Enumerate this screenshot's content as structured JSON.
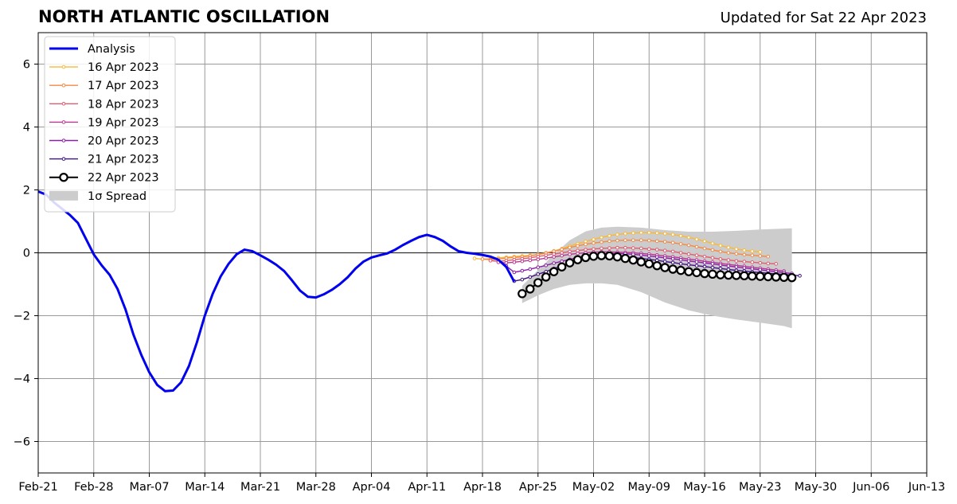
{
  "header": {
    "title": "NORTH ATLANTIC OSCILLATION",
    "updated": "Updated for Sat 22 Apr 2023"
  },
  "chart_data": {
    "type": "line",
    "title": "NORTH ATLANTIC OSCILLATION",
    "subtitle": "Updated for Sat 22 Apr 2023",
    "xlabel": "",
    "ylabel": "",
    "x_start": "2023-02-21",
    "xlim": [
      "2023-02-21",
      "2023-06-13"
    ],
    "ylim": [
      -7,
      7
    ],
    "grid": true,
    "legend_position": "top-left",
    "x_ticks": [
      "Feb-21",
      "Feb-28",
      "Mar-07",
      "Mar-14",
      "Mar-21",
      "Mar-28",
      "Apr-04",
      "Apr-11",
      "Apr-18",
      "Apr-25",
      "May-02",
      "May-09",
      "May-16",
      "May-23",
      "May-30",
      "Jun-06",
      "Jun-13"
    ],
    "y_ticks": [
      6,
      4,
      2,
      0,
      -2,
      -4,
      -6
    ],
    "y_tick_labels": [
      "6",
      "4",
      "2",
      "0",
      "−2",
      "−4",
      "−6"
    ],
    "legend": [
      "Analysis",
      "16 Apr 2023",
      "17 Apr 2023",
      "18 Apr 2023",
      "19 Apr 2023",
      "20 Apr 2023",
      "21 Apr 2023",
      "22 Apr 2023",
      "1σ Spread"
    ],
    "analysis": {
      "name": "Analysis",
      "color": "#0000ee",
      "points": [
        [
          "2023-02-21",
          1.95
        ],
        [
          "2023-02-22",
          1.85
        ],
        [
          "2023-02-23",
          1.6
        ],
        [
          "2023-02-24",
          1.4
        ],
        [
          "2023-02-25",
          1.2
        ],
        [
          "2023-02-26",
          0.95
        ],
        [
          "2023-02-27",
          0.45
        ],
        [
          "2023-02-28",
          -0.05
        ],
        [
          "2023-03-01",
          -0.4
        ],
        [
          "2023-03-02",
          -0.7
        ],
        [
          "2023-03-03",
          -1.15
        ],
        [
          "2023-03-04",
          -1.8
        ],
        [
          "2023-03-05",
          -2.6
        ],
        [
          "2023-03-06",
          -3.25
        ],
        [
          "2023-03-07",
          -3.8
        ],
        [
          "2023-03-08",
          -4.2
        ],
        [
          "2023-03-09",
          -4.4
        ],
        [
          "2023-03-10",
          -4.38
        ],
        [
          "2023-03-11",
          -4.12
        ],
        [
          "2023-03-12",
          -3.6
        ],
        [
          "2023-03-13",
          -2.85
        ],
        [
          "2023-03-14",
          -2.0
        ],
        [
          "2023-03-15",
          -1.3
        ],
        [
          "2023-03-16",
          -0.75
        ],
        [
          "2023-03-17",
          -0.35
        ],
        [
          "2023-03-18",
          -0.05
        ],
        [
          "2023-03-19",
          0.1
        ],
        [
          "2023-03-20",
          0.05
        ],
        [
          "2023-03-21",
          -0.08
        ],
        [
          "2023-03-22",
          -0.22
        ],
        [
          "2023-03-23",
          -0.38
        ],
        [
          "2023-03-24",
          -0.58
        ],
        [
          "2023-03-25",
          -0.88
        ],
        [
          "2023-03-26",
          -1.2
        ],
        [
          "2023-03-27",
          -1.4
        ],
        [
          "2023-03-28",
          -1.42
        ],
        [
          "2023-03-29",
          -1.32
        ],
        [
          "2023-03-30",
          -1.18
        ],
        [
          "2023-03-31",
          -1.0
        ],
        [
          "2023-04-01",
          -0.78
        ],
        [
          "2023-04-02",
          -0.5
        ],
        [
          "2023-04-03",
          -0.28
        ],
        [
          "2023-04-04",
          -0.15
        ],
        [
          "2023-04-05",
          -0.08
        ],
        [
          "2023-04-06",
          -0.02
        ],
        [
          "2023-04-07",
          0.1
        ],
        [
          "2023-04-08",
          0.25
        ],
        [
          "2023-04-09",
          0.38
        ],
        [
          "2023-04-10",
          0.5
        ],
        [
          "2023-04-11",
          0.57
        ],
        [
          "2023-04-12",
          0.5
        ],
        [
          "2023-04-13",
          0.38
        ],
        [
          "2023-04-14",
          0.2
        ],
        [
          "2023-04-15",
          0.05
        ],
        [
          "2023-04-16",
          0.0
        ],
        [
          "2023-04-17",
          -0.03
        ],
        [
          "2023-04-18",
          -0.07
        ],
        [
          "2023-04-19",
          -0.12
        ],
        [
          "2023-04-20",
          -0.22
        ],
        [
          "2023-04-21",
          -0.45
        ],
        [
          "2023-04-22",
          -0.92
        ]
      ]
    },
    "spread": {
      "name": "1σ Spread",
      "color": "#cccccc",
      "dates": [
        "2023-04-23",
        "2023-04-25",
        "2023-04-27",
        "2023-04-29",
        "2023-05-01",
        "2023-05-03",
        "2023-05-05",
        "2023-05-08",
        "2023-05-11",
        "2023-05-14",
        "2023-05-17",
        "2023-05-20",
        "2023-05-23",
        "2023-05-26",
        "2023-05-27"
      ],
      "upper": [
        -1.05,
        -0.55,
        -0.05,
        0.4,
        0.68,
        0.8,
        0.83,
        0.8,
        0.72,
        0.67,
        0.67,
        0.7,
        0.74,
        0.77,
        0.78
      ],
      "lower": [
        -1.6,
        -1.35,
        -1.15,
        -1.02,
        -0.97,
        -0.97,
        -1.02,
        -1.25,
        -1.58,
        -1.83,
        -2.0,
        -2.12,
        -2.22,
        -2.33,
        -2.4
      ]
    },
    "series": [
      {
        "name": "16 Apr 2023",
        "color": "#f6b93b",
        "start": "2023-04-17",
        "values": [
          -0.18,
          -0.2,
          -0.19,
          -0.16,
          -0.14,
          -0.12,
          -0.1,
          -0.08,
          -0.05,
          0.0,
          0.06,
          0.13,
          0.21,
          0.29,
          0.36,
          0.43,
          0.49,
          0.54,
          0.58,
          0.61,
          0.63,
          0.64,
          0.64,
          0.63,
          0.61,
          0.58,
          0.54,
          0.49,
          0.43,
          0.37,
          0.3,
          0.23,
          0.17,
          0.12,
          0.08,
          0.05,
          0.03
        ]
      },
      {
        "name": "17 Apr 2023",
        "color": "#f28a45",
        "start": "2023-04-18",
        "values": [
          -0.2,
          -0.22,
          -0.2,
          -0.17,
          -0.15,
          -0.13,
          -0.1,
          -0.06,
          -0.01,
          0.05,
          0.11,
          0.17,
          0.22,
          0.27,
          0.31,
          0.34,
          0.37,
          0.39,
          0.4,
          0.4,
          0.4,
          0.39,
          0.37,
          0.35,
          0.32,
          0.28,
          0.24,
          0.19,
          0.14,
          0.09,
          0.04,
          0.0,
          -0.03,
          -0.06,
          -0.08,
          -0.1,
          -0.12
        ]
      },
      {
        "name": "18 Apr 2023",
        "color": "#e05c6e",
        "start": "2023-04-19",
        "values": [
          -0.25,
          -0.27,
          -0.25,
          -0.22,
          -0.19,
          -0.16,
          -0.12,
          -0.08,
          -0.04,
          0.0,
          0.04,
          0.07,
          0.1,
          0.12,
          0.14,
          0.15,
          0.16,
          0.16,
          0.15,
          0.14,
          0.12,
          0.1,
          0.07,
          0.04,
          0.0,
          -0.04,
          -0.08,
          -0.12,
          -0.16,
          -0.2,
          -0.23,
          -0.26,
          -0.28,
          -0.3,
          -0.32,
          -0.34,
          -0.35
        ]
      },
      {
        "name": "19 Apr 2023",
        "color": "#b9388f",
        "start": "2023-04-20",
        "values": [
          -0.3,
          -0.32,
          -0.3,
          -0.27,
          -0.24,
          -0.21,
          -0.17,
          -0.13,
          -0.09,
          -0.05,
          -0.02,
          0.0,
          0.02,
          0.03,
          0.03,
          0.02,
          0.01,
          0.0,
          -0.02,
          -0.04,
          -0.07,
          -0.1,
          -0.13,
          -0.16,
          -0.2,
          -0.23,
          -0.27,
          -0.3,
          -0.34,
          -0.37,
          -0.4,
          -0.43,
          -0.46,
          -0.49,
          -0.52,
          -0.55,
          -0.58
        ]
      },
      {
        "name": "20 Apr 2023",
        "color": "#8a1fa6",
        "start": "2023-04-21",
        "values": [
          -0.42,
          -0.62,
          -0.57,
          -0.52,
          -0.46,
          -0.4,
          -0.33,
          -0.27,
          -0.21,
          -0.15,
          -0.1,
          -0.06,
          -0.03,
          -0.02,
          -0.02,
          -0.03,
          -0.05,
          -0.07,
          -0.1,
          -0.13,
          -0.16,
          -0.19,
          -0.22,
          -0.26,
          -0.29,
          -0.32,
          -0.35,
          -0.39,
          -0.42,
          -0.45,
          -0.48,
          -0.51,
          -0.54,
          -0.57,
          -0.6,
          -0.63,
          -0.66
        ]
      },
      {
        "name": "21 Apr 2023",
        "color": "#3e1180",
        "start": "2023-04-22",
        "values": [
          -0.9,
          -0.85,
          -0.77,
          -0.68,
          -0.6,
          -0.5,
          -0.41,
          -0.33,
          -0.26,
          -0.2,
          -0.16,
          -0.13,
          -0.12,
          -0.12,
          -0.13,
          -0.15,
          -0.18,
          -0.21,
          -0.24,
          -0.28,
          -0.31,
          -0.35,
          -0.38,
          -0.41,
          -0.44,
          -0.47,
          -0.5,
          -0.53,
          -0.56,
          -0.58,
          -0.61,
          -0.63,
          -0.65,
          -0.67,
          -0.69,
          -0.71,
          -0.73
        ]
      },
      {
        "name": "22 Apr 2023",
        "color": "#000000",
        "start": "2023-04-23",
        "values": [
          -1.3,
          -1.15,
          -0.95,
          -0.77,
          -0.6,
          -0.45,
          -0.32,
          -0.22,
          -0.15,
          -0.11,
          -0.09,
          -0.1,
          -0.13,
          -0.18,
          -0.23,
          -0.29,
          -0.35,
          -0.41,
          -0.47,
          -0.52,
          -0.56,
          -0.6,
          -0.63,
          -0.66,
          -0.68,
          -0.7,
          -0.71,
          -0.72,
          -0.73,
          -0.74,
          -0.75,
          -0.76,
          -0.77,
          -0.78,
          -0.79
        ]
      }
    ]
  }
}
